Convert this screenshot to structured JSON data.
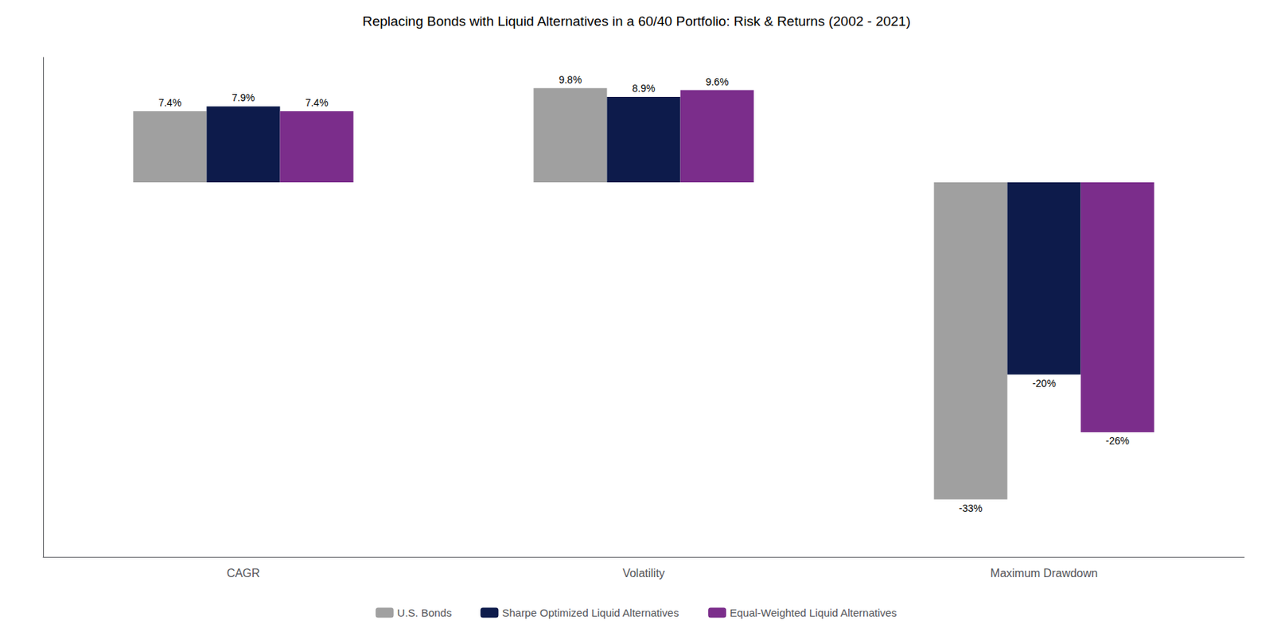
{
  "chart_data": {
    "type": "bar",
    "title": "Replacing Bonds with Liquid Alternatives in a 60/40 Portfolio: Risk & Returns (2002 - 2021)",
    "categories": [
      "CAGR",
      "Volatility",
      "Maximum Drawdown"
    ],
    "series": [
      {
        "name": "U.S. Bonds",
        "color": "#a0a0a0",
        "values": [
          7.4,
          9.8,
          -33
        ],
        "value_labels": [
          "7.4%",
          "9.8%",
          "-33%"
        ]
      },
      {
        "name": "Sharpe Optimized Liquid Alternatives",
        "color": "#0d1b4b",
        "values": [
          7.9,
          8.9,
          -20
        ],
        "value_labels": [
          "7.9%",
          "8.9%",
          "-20%"
        ]
      },
      {
        "name": "Equal-Weighted Liquid Alternatives",
        "color": "#7b2d8b",
        "values": [
          7.4,
          9.6,
          -26
        ],
        "value_labels": [
          "7.4%",
          "9.6%",
          "-26%"
        ]
      }
    ],
    "ylim": [
      -39,
      13
    ],
    "grid": false,
    "legend": "bottom",
    "data_labels": true,
    "tick_labels": "x"
  }
}
